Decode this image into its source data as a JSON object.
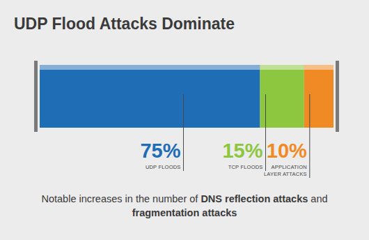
{
  "chart_data": {
    "type": "bar",
    "title": "UDP Flood Attacks Dominate",
    "orientation": "horizontal",
    "stacked": true,
    "data_labels": true,
    "tick_labels": false,
    "categories": [
      null
    ],
    "xlim": [
      0,
      100
    ],
    "series": [
      {
        "name": "UDP FLOODS",
        "color": "#1f6db5",
        "values": [
          75
        ],
        "value_labels": [
          "75%"
        ]
      },
      {
        "name": "TCP FLOODS",
        "color": "#8dc63f",
        "values": [
          15
        ],
        "value_labels": [
          "15%"
        ]
      },
      {
        "name": "APPLICATION LAYER ATTACKS",
        "color": "#f08a24",
        "values": [
          10
        ],
        "value_labels": [
          "10%"
        ]
      }
    ],
    "annotation": "Notable increases in the number of DNS reflection attacks and fragmentation attacks",
    "annotation_emphasis": [
      "DNS reflection attacks",
      "fragmentation attacks"
    ]
  }
}
